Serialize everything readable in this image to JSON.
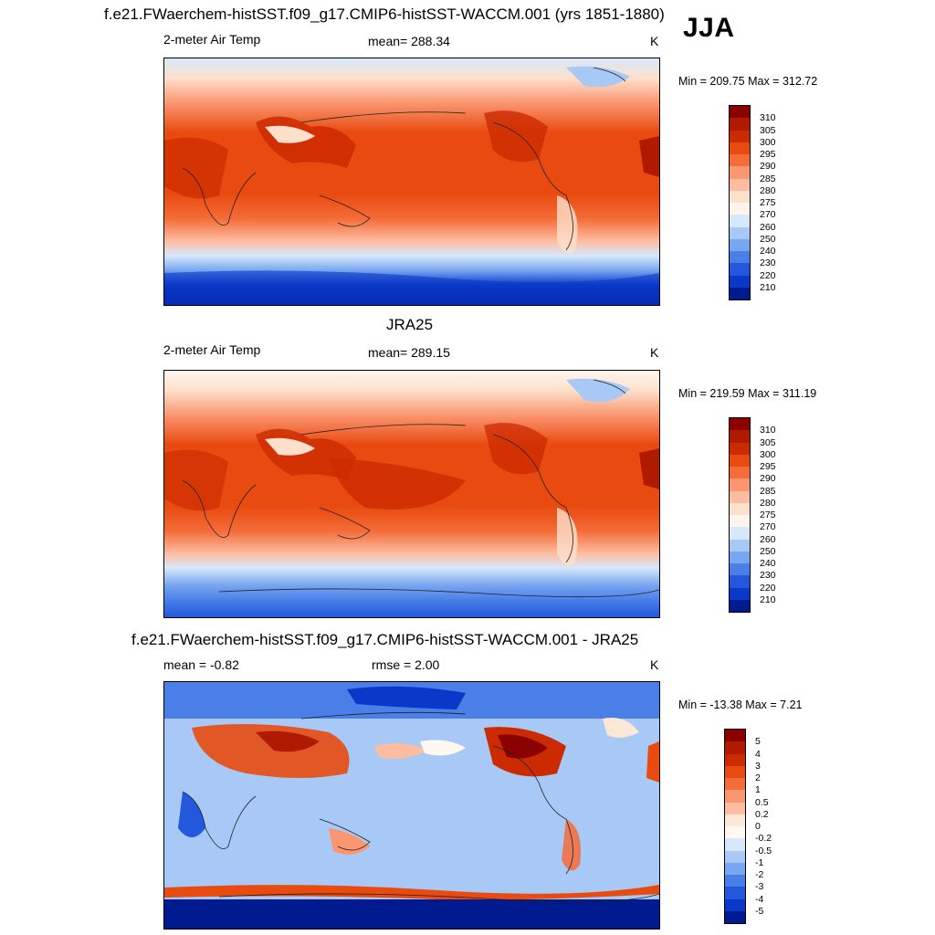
{
  "header": {
    "title": "f.e21.FWaerchem-histSST.f09_g17.CMIP6-histSST-WACCM.001 (yrs 1851-1880)",
    "season": "JJA"
  },
  "panels": [
    {
      "id": "model",
      "title": "",
      "left_label": "2-meter Air Temp",
      "mid_label": "mean= 288.34",
      "unit": "K",
      "minmax": "Min = 209.75 Max = 312.72",
      "colorbar": {
        "labels": [
          "310",
          "305",
          "300",
          "295",
          "290",
          "285",
          "280",
          "275",
          "270",
          "260",
          "250",
          "240",
          "230",
          "220",
          "210"
        ],
        "colors": [
          "#8b0000",
          "#b01a00",
          "#cc2a00",
          "#e84a10",
          "#f46c38",
          "#fa9670",
          "#fdbca0",
          "#fde0cc",
          "#fff5ec",
          "#d6e8fb",
          "#a8c8f5",
          "#78a6f0",
          "#4a7fe8",
          "#2458dc",
          "#0a38c8",
          "#001a90"
        ]
      }
    },
    {
      "id": "obs",
      "title": "JRA25",
      "left_label": "2-meter Air Temp",
      "mid_label": "mean= 289.15",
      "unit": "K",
      "minmax": "Min = 219.59 Max = 311.19",
      "colorbar": {
        "labels": [
          "310",
          "305",
          "300",
          "295",
          "290",
          "285",
          "280",
          "275",
          "270",
          "260",
          "250",
          "240",
          "230",
          "220",
          "210"
        ],
        "colors": [
          "#8b0000",
          "#b01a00",
          "#cc2a00",
          "#e84a10",
          "#f46c38",
          "#fa9670",
          "#fdbca0",
          "#fde0cc",
          "#fff5ec",
          "#d6e8fb",
          "#a8c8f5",
          "#78a6f0",
          "#4a7fe8",
          "#2458dc",
          "#0a38c8",
          "#001a90"
        ]
      }
    },
    {
      "id": "diff",
      "title": "f.e21.FWaerchem-histSST.f09_g17.CMIP6-histSST-WACCM.001 - JRA25",
      "left_label": "mean =  -0.82",
      "mid_label": "rmse =   2.00",
      "unit": "K",
      "minmax": "Min = -13.38 Max =   7.21",
      "colorbar": {
        "labels": [
          "5",
          "4",
          "3",
          "2",
          "1",
          "0.5",
          "0.2",
          "0",
          "-0.2",
          "-0.5",
          "-1",
          "-2",
          "-3",
          "-4",
          "-5"
        ],
        "colors": [
          "#8b0000",
          "#b01a00",
          "#cc2a00",
          "#e84a10",
          "#f46c38",
          "#fa9670",
          "#fdbca0",
          "#fde8d8",
          "#fff8f0",
          "#d6e8fb",
          "#a8c8f5",
          "#78a6f0",
          "#4a7fe8",
          "#2458dc",
          "#0a38c8",
          "#001a90"
        ]
      }
    }
  ],
  "colors": {
    "accent_warm": "#e84a10",
    "accent_cold": "#2458dc",
    "map_border": "#000000"
  }
}
